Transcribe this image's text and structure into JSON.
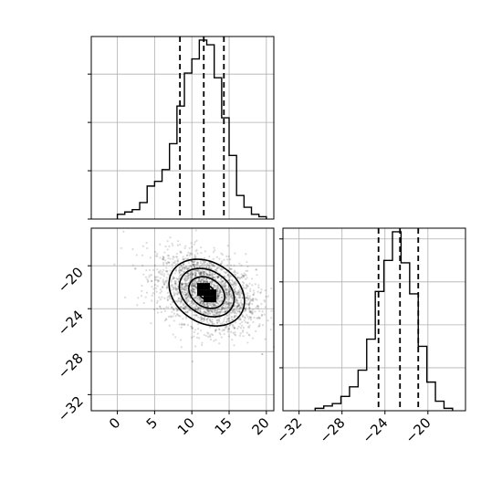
{
  "chart_data": [
    {
      "type": "histogram",
      "panel": "top-left",
      "variable": "x",
      "xlim": [
        -3.5,
        21
      ],
      "bin_edges": [
        0,
        1,
        2,
        3,
        4,
        5,
        6,
        7,
        8,
        9,
        10,
        11,
        12,
        13,
        14,
        15,
        16,
        17,
        18,
        19,
        20
      ],
      "counts": [
        2,
        3,
        4,
        7,
        14,
        16,
        21,
        32,
        48,
        62,
        68,
        76,
        74,
        60,
        43,
        27,
        10,
        5,
        2,
        1
      ],
      "quantiles": [
        8.4,
        11.6,
        14.3
      ],
      "grid": true
    },
    {
      "type": "scatter",
      "panel": "bottom-left",
      "subtype": "2d-density-contour",
      "xlim": [
        -3.5,
        21
      ],
      "ylim": [
        -33.5,
        -16.5
      ],
      "xticks": [
        0,
        5,
        10,
        15,
        20
      ],
      "xtick_labels": [
        "0",
        "5",
        "10",
        "15",
        "20"
      ],
      "yticks": [
        -20,
        -24,
        -28,
        -32
      ],
      "ytick_labels": [
        "−20",
        "−24",
        "−28",
        "−32"
      ],
      "center": [
        12,
        -22.5
      ],
      "spread": [
        3.3,
        1.8
      ],
      "correlation": -0.35,
      "contour_levels": 4,
      "grid": true
    },
    {
      "type": "histogram",
      "panel": "bottom-right",
      "variable": "y",
      "xlim": [
        -33.5,
        -16.5
      ],
      "xticks": [
        -32,
        -28,
        -24,
        -20
      ],
      "xtick_labels": [
        "−32",
        "−28",
        "−24",
        "−20"
      ],
      "bin_edges": [
        -30.5,
        -29.7,
        -28.9,
        -28.1,
        -27.3,
        -26.5,
        -25.7,
        -24.9,
        -24.1,
        -23.3,
        -22.5,
        -21.7,
        -20.9,
        -20.1,
        -19.3,
        -18.5,
        -17.7
      ],
      "counts": [
        1,
        2,
        3,
        6,
        10,
        17,
        30,
        50,
        63,
        75,
        62,
        49,
        27,
        12,
        4,
        1
      ],
      "quantiles": [
        -24.6,
        -22.6,
        -20.9
      ],
      "grid": true
    }
  ]
}
